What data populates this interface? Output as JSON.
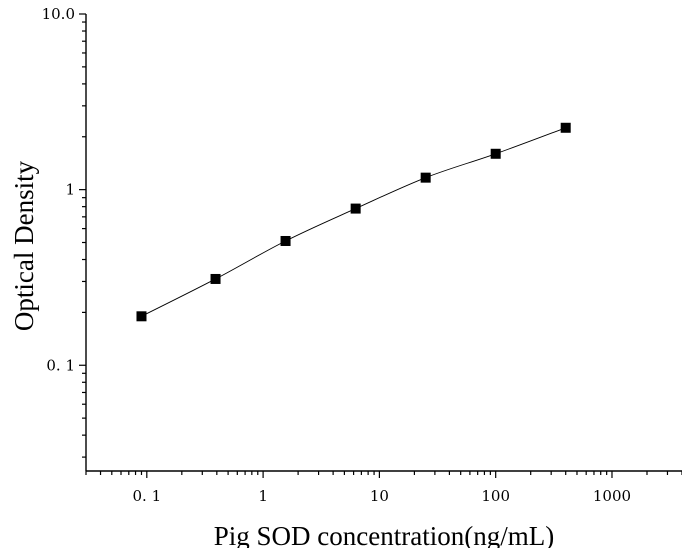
{
  "chart_data": {
    "type": "scatter",
    "xlabel": "Pig SOD concentration(ng/mL)",
    "ylabel": "Optical Density",
    "x_scale": "log",
    "y_scale": "log",
    "xlim": [
      0.03,
      4000
    ],
    "ylim": [
      0.025,
      10
    ],
    "x_ticks": [
      {
        "value": 0.1,
        "label": "0. 1"
      },
      {
        "value": 1,
        "label": "1"
      },
      {
        "value": 10,
        "label": "10"
      },
      {
        "value": 100,
        "label": "100"
      },
      {
        "value": 1000,
        "label": "1000"
      }
    ],
    "y_ticks": [
      {
        "value": 0.1,
        "label": "0. 1"
      },
      {
        "value": 1,
        "label": "1"
      },
      {
        "value": 10,
        "label": "10.0"
      }
    ],
    "grid": false,
    "series": [
      {
        "marker": "square",
        "fit_line": true,
        "points": [
          {
            "x": 0.09,
            "y": 0.19
          },
          {
            "x": 0.39,
            "y": 0.31
          },
          {
            "x": 1.56,
            "y": 0.51
          },
          {
            "x": 6.25,
            "y": 0.78
          },
          {
            "x": 25,
            "y": 1.17
          },
          {
            "x": 100,
            "y": 1.6
          },
          {
            "x": 400,
            "y": 2.25
          }
        ]
      }
    ]
  }
}
